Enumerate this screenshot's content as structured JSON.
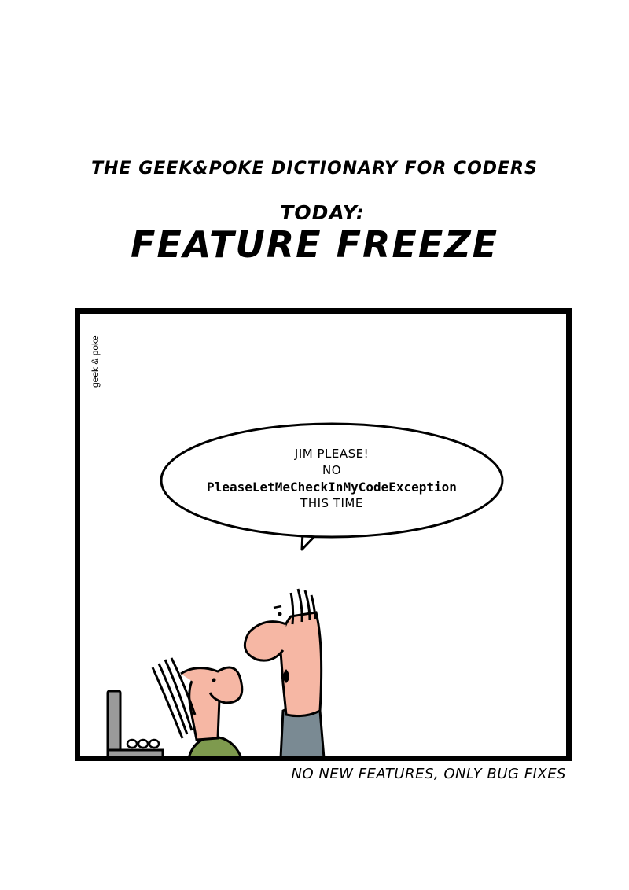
{
  "header": {
    "series_title": "THE GEEK&POKE DICTIONARY FOR CODERS",
    "today_label": "TODAY:",
    "term": "FEATURE FREEZE"
  },
  "panel": {
    "watermark": "geek & poke",
    "speech_bubble": {
      "line1": "JIM PLEASE!",
      "line2": "NO",
      "line3": "PleaseLetMeCheckInMyCodeException",
      "line4": "THIS TIME"
    },
    "colors": {
      "skin": "#f6b7a4",
      "shirt_seated": "#7e9a4e",
      "shirt_standing": "#7a8a93",
      "laptop": "#9a9a9a"
    }
  },
  "caption": "NO NEW FEATURES, ONLY BUG FIXES"
}
